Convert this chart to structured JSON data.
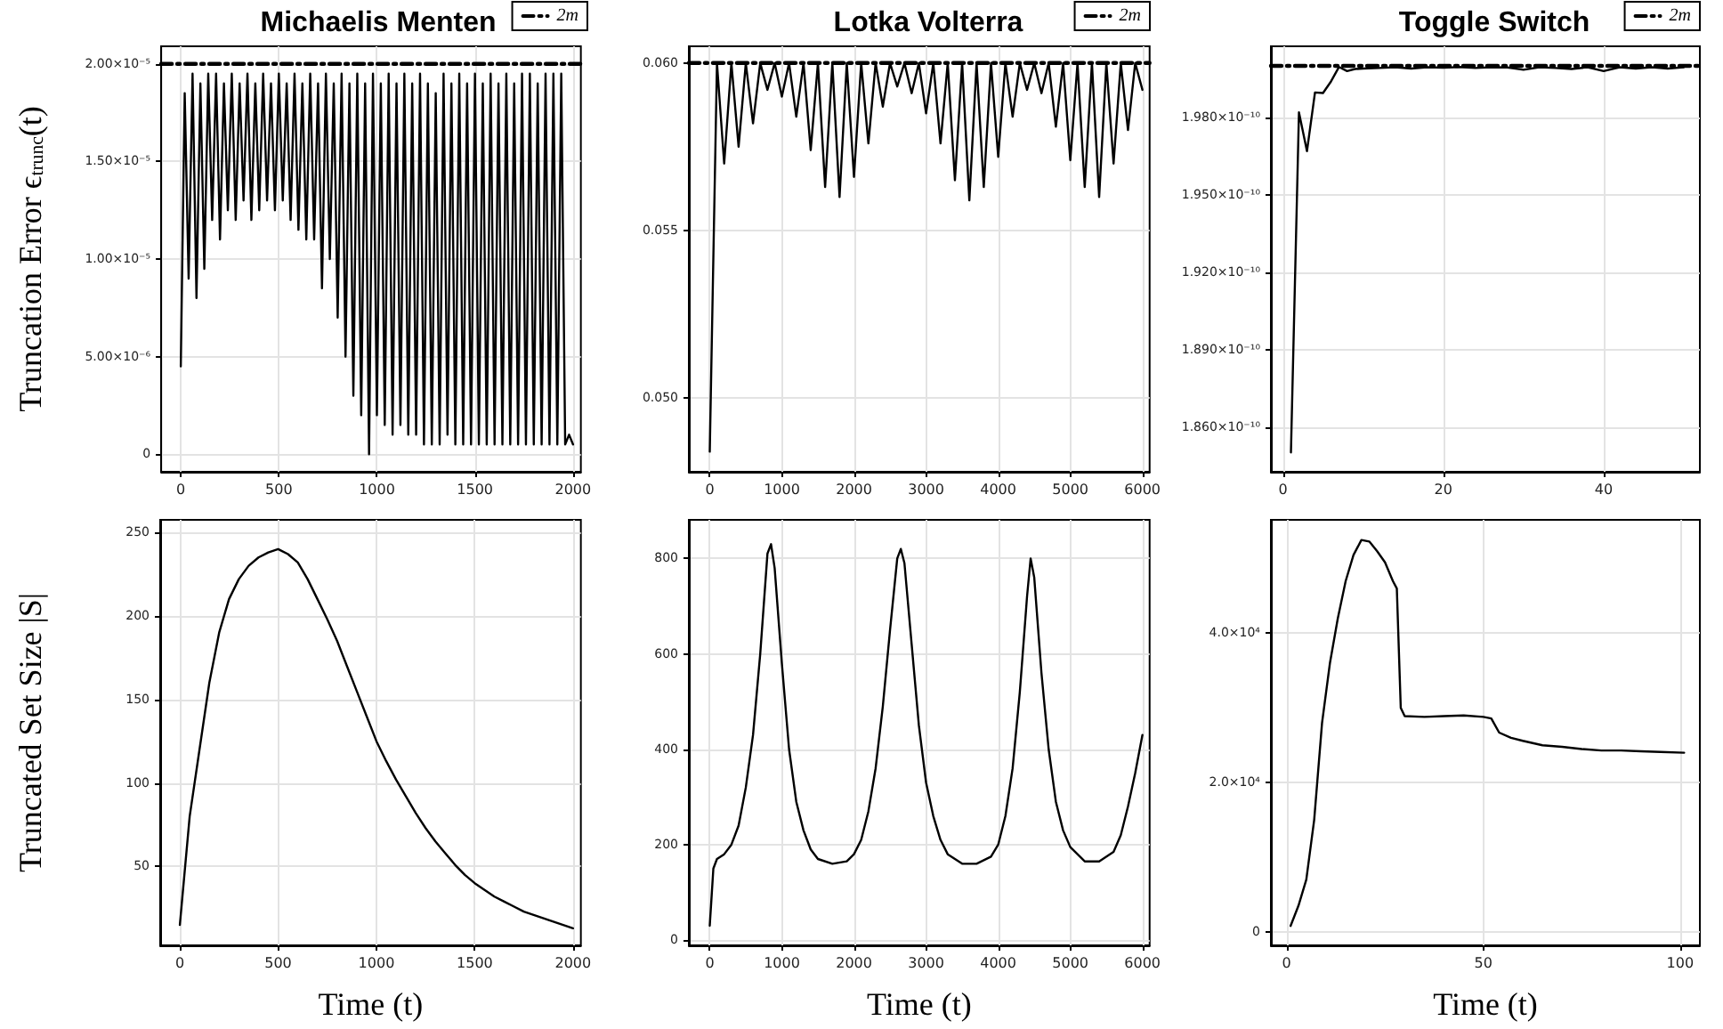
{
  "chart_data": [
    {
      "type": "line",
      "title": "Michaelis Menten",
      "ylabel": "Truncation Error ϵ$_{trunc}$(t)",
      "grid": true,
      "legend": "top right",
      "xlim": [
        -100,
        2040
      ],
      "xticks": [
        0,
        500,
        1000,
        1500,
        2000
      ],
      "ylim": [
        -9e-07,
        2.09e-05
      ],
      "yticks": [
        0,
        {
          "value": 5e-06,
          "label": "5.00×10⁻⁶"
        },
        {
          "value": 1e-05,
          "label": "1.00×10⁻⁵"
        },
        {
          "value": 1.5e-05,
          "label": "1.50×10⁻⁵"
        },
        {
          "value": 2e-05,
          "label": "2.00×10⁻⁵"
        }
      ],
      "series": [
        {
          "color": "#000000",
          "x": [
            0,
            20,
            40,
            60,
            80,
            100,
            120,
            140,
            160,
            180,
            200,
            220,
            240,
            260,
            280,
            300,
            320,
            340,
            360,
            380,
            400,
            420,
            440,
            460,
            480,
            500,
            520,
            540,
            560,
            580,
            600,
            620,
            640,
            660,
            680,
            700,
            720,
            740,
            760,
            780,
            800,
            820,
            840,
            860,
            880,
            900,
            920,
            940,
            960,
            980,
            1000,
            1020,
            1040,
            1060,
            1080,
            1100,
            1120,
            1140,
            1160,
            1180,
            1200,
            1220,
            1240,
            1260,
            1280,
            1300,
            1320,
            1340,
            1360,
            1380,
            1400,
            1420,
            1440,
            1460,
            1480,
            1500,
            1520,
            1540,
            1560,
            1580,
            1600,
            1620,
            1640,
            1660,
            1680,
            1700,
            1720,
            1740,
            1760,
            1780,
            1800,
            1820,
            1840,
            1860,
            1880,
            1900,
            1920,
            1940,
            1960,
            1980,
            2000
          ],
          "values": [
            4.5e-06,
            1.85e-05,
            9e-06,
            1.95e-05,
            8e-06,
            1.9e-05,
            9.5e-06,
            1.95e-05,
            1.2e-05,
            1.95e-05,
            1.1e-05,
            1.9e-05,
            1.25e-05,
            1.95e-05,
            1.2e-05,
            1.9e-05,
            1.3e-05,
            1.95e-05,
            1.2e-05,
            1.9e-05,
            1.25e-05,
            1.95e-05,
            1.3e-05,
            1.9e-05,
            1.25e-05,
            1.95e-05,
            1.3e-05,
            1.9e-05,
            1.2e-05,
            1.95e-05,
            1.15e-05,
            1.9e-05,
            1.1e-05,
            1.95e-05,
            1.1e-05,
            1.9e-05,
            8.5e-06,
            1.95e-05,
            1e-05,
            1.9e-05,
            7e-06,
            1.95e-05,
            5e-06,
            1.9e-05,
            3e-06,
            1.95e-05,
            2e-06,
            1.9e-05,
            0,
            1.95e-05,
            2e-06,
            1.9e-05,
            1.5e-06,
            1.95e-05,
            1e-06,
            1.9e-05,
            1.5e-06,
            1.95e-05,
            1e-06,
            1.9e-05,
            1e-06,
            1.95e-05,
            5e-07,
            1.9e-05,
            5e-07,
            1.85e-05,
            5e-07,
            1.95e-05,
            1e-06,
            1.9e-05,
            5e-07,
            1.95e-05,
            5e-07,
            1.9e-05,
            5e-07,
            1.95e-05,
            5e-07,
            1.9e-05,
            5e-07,
            1.95e-05,
            5e-07,
            1.9e-05,
            5e-07,
            1.95e-05,
            5e-07,
            1.9e-05,
            5e-07,
            1.95e-05,
            5e-07,
            1.95e-05,
            5e-07,
            1.9e-05,
            5e-07,
            1.95e-05,
            5e-07,
            1.95e-05,
            5e-07,
            1.95e-05,
            5e-07,
            1e-06,
            5e-07
          ]
        },
        {
          "name": "2m",
          "color": "#000000",
          "line_style": "dashed",
          "x": [
            -100,
            2040
          ],
          "values": [
            2e-05,
            2e-05
          ]
        }
      ]
    },
    {
      "type": "line",
      "title": "Lotka Volterra",
      "grid": true,
      "legend": "top right",
      "xlim": [
        -290,
        6100
      ],
      "xticks": [
        0,
        1000,
        2000,
        3000,
        4000,
        5000,
        6000
      ],
      "ylim": [
        0.0478,
        0.0605
      ],
      "yticks": [
        {
          "value": 0.05,
          "label": "0.050"
        },
        0.055,
        {
          "value": 0.06,
          "label": "0.060"
        }
      ],
      "series": [
        {
          "color": "#000000",
          "x": [
            0,
            100,
            200,
            300,
            400,
            500,
            600,
            700,
            800,
            900,
            1000,
            1100,
            1200,
            1300,
            1400,
            1500,
            1600,
            1700,
            1800,
            1900,
            2000,
            2100,
            2200,
            2300,
            2400,
            2500,
            2600,
            2700,
            2800,
            2900,
            3000,
            3100,
            3200,
            3300,
            3400,
            3500,
            3600,
            3700,
            3800,
            3900,
            4000,
            4100,
            4200,
            4300,
            4400,
            4500,
            4600,
            4700,
            4800,
            4900,
            5000,
            5100,
            5200,
            5300,
            5400,
            5500,
            5600,
            5700,
            5800,
            5900,
            6000
          ],
          "values": [
            0.0484,
            0.06,
            0.057,
            0.06,
            0.0575,
            0.06,
            0.0582,
            0.06,
            0.0592,
            0.06,
            0.059,
            0.06,
            0.0584,
            0.06,
            0.0574,
            0.06,
            0.0563,
            0.06,
            0.056,
            0.06,
            0.0566,
            0.06,
            0.0576,
            0.06,
            0.0587,
            0.06,
            0.0593,
            0.06,
            0.0591,
            0.06,
            0.0585,
            0.06,
            0.0576,
            0.06,
            0.0565,
            0.06,
            0.0559,
            0.06,
            0.0563,
            0.06,
            0.0572,
            0.06,
            0.0584,
            0.06,
            0.0592,
            0.06,
            0.0591,
            0.06,
            0.0581,
            0.06,
            0.0571,
            0.06,
            0.0563,
            0.06,
            0.056,
            0.06,
            0.057,
            0.06,
            0.058,
            0.06,
            0.0592
          ]
        },
        {
          "name": "2m",
          "color": "#000000",
          "line_style": "dashed",
          "x": [
            -290,
            6100
          ],
          "values": [
            0.06,
            0.06
          ]
        }
      ]
    },
    {
      "type": "line",
      "title": "Toggle Switch",
      "grid": true,
      "legend": "top right",
      "xlim": [
        -1.5,
        52
      ],
      "xticks": [
        0,
        20,
        40
      ],
      "ylim": [
        1.8428e-10,
        2.0076e-10
      ],
      "yticks": [
        {
          "value": 1.86e-10,
          "label": "1.860×10⁻¹⁰"
        },
        {
          "value": 1.89e-10,
          "label": "1.890×10⁻¹⁰"
        },
        {
          "value": 1.92e-10,
          "label": "1.920×10⁻¹⁰"
        },
        {
          "value": 1.95e-10,
          "label": "1.950×10⁻¹⁰"
        },
        {
          "value": 1.98e-10,
          "label": "1.980×10⁻¹⁰"
        }
      ],
      "series": [
        {
          "color": "#000000",
          "x": [
            1,
            2,
            3,
            4,
            5,
            6,
            7,
            8,
            9,
            10,
            12,
            14,
            16,
            18,
            20,
            22,
            24,
            26,
            28,
            30,
            32,
            34,
            36,
            38,
            40,
            42,
            44,
            46,
            48,
            50
          ],
          "values": [
            1.8503e-10,
            1.982e-10,
            1.967e-10,
            1.9897e-10,
            1.9895e-10,
            1.994e-10,
            1.9996e-10,
            1.998e-10,
            1.9988e-10,
            1.999e-10,
            1.9992e-10,
            1.9995e-10,
            1.999e-10,
            1.9995e-10,
            1.9993e-10,
            1.9996e-10,
            1.9992e-10,
            1.9995e-10,
            1.9994e-10,
            1.9985e-10,
            1.9995e-10,
            1.9992e-10,
            1.9988e-10,
            1.9995e-10,
            1.998e-10,
            1.9995e-10,
            1.999e-10,
            1.9995e-10,
            1.999e-10,
            1.9995e-10
          ]
        },
        {
          "name": "2m",
          "color": "#000000",
          "line_style": "dashed",
          "x": [
            -1.5,
            52
          ],
          "values": [
            2e-10,
            2e-10
          ]
        }
      ]
    },
    {
      "type": "line",
      "ylabel": "Truncated Set Size |S|",
      "xlabel": "Time (t)",
      "grid": true,
      "xlim": [
        -100,
        2040
      ],
      "xticks": [
        0,
        500,
        1000,
        1500,
        2000
      ],
      "ylim": [
        2.8,
        257.5
      ],
      "yticks": [
        50,
        100,
        150,
        200,
        250
      ],
      "series": [
        {
          "color": "#000000",
          "x": [
            0,
            50,
            100,
            150,
            200,
            250,
            300,
            350,
            400,
            450,
            500,
            550,
            600,
            650,
            700,
            750,
            800,
            850,
            900,
            950,
            1000,
            1050,
            1100,
            1150,
            1200,
            1250,
            1300,
            1350,
            1400,
            1450,
            1500,
            1550,
            1600,
            1650,
            1700,
            1750,
            1800,
            1850,
            1900,
            1950,
            2000
          ],
          "values": [
            15,
            80,
            120,
            160,
            190,
            210,
            222,
            230,
            235,
            238,
            240,
            237,
            232,
            222,
            210,
            198,
            185,
            170,
            155,
            140,
            125,
            113,
            102,
            92,
            82,
            73,
            65,
            58,
            51,
            45,
            40,
            36,
            32,
            29,
            26,
            23,
            21,
            19,
            17,
            15,
            13
          ]
        }
      ]
    },
    {
      "type": "line",
      "xlabel": "Time (t)",
      "grid": true,
      "xlim": [
        -290,
        6100
      ],
      "xticks": [
        0,
        1000,
        2000,
        3000,
        4000,
        5000,
        6000
      ],
      "ylim": [
        -11,
        881
      ],
      "yticks": [
        0,
        200,
        400,
        600,
        800
      ],
      "series": [
        {
          "color": "#000000",
          "x": [
            0,
            50,
            100,
            200,
            300,
            400,
            500,
            600,
            700,
            800,
            850,
            900,
            1000,
            1100,
            1200,
            1300,
            1400,
            1500,
            1700,
            1900,
            2000,
            2100,
            2200,
            2300,
            2400,
            2500,
            2600,
            2650,
            2700,
            2800,
            2900,
            3000,
            3100,
            3200,
            3300,
            3500,
            3700,
            3900,
            4000,
            4100,
            4200,
            4300,
            4400,
            4450,
            4500,
            4600,
            4700,
            4800,
            4900,
            5000,
            5200,
            5400,
            5600,
            5700,
            5800,
            5900,
            6000
          ],
          "values": [
            30,
            150,
            170,
            180,
            200,
            240,
            320,
            430,
            600,
            810,
            830,
            780,
            580,
            400,
            290,
            230,
            190,
            170,
            160,
            165,
            180,
            210,
            270,
            360,
            490,
            650,
            800,
            820,
            790,
            620,
            450,
            330,
            260,
            210,
            180,
            160,
            160,
            175,
            200,
            260,
            360,
            520,
            720,
            800,
            760,
            560,
            400,
            290,
            230,
            195,
            165,
            165,
            185,
            220,
            280,
            350,
            430
          ]
        }
      ]
    },
    {
      "type": "line",
      "xlabel": "Time (t)",
      "grid": true,
      "xlim": [
        -4,
        105
      ],
      "xticks": [
        0,
        50,
        100
      ],
      "ylim": [
        -1800,
        55200
      ],
      "yticks": [
        0,
        {
          "value": 20000,
          "label": "2.0×10⁴"
        },
        {
          "value": 40000,
          "label": "4.0×10⁴"
        }
      ],
      "series": [
        {
          "color": "#000000",
          "x": [
            1,
            3,
            5,
            7,
            9,
            11,
            13,
            15,
            17,
            19,
            21,
            23,
            25,
            27,
            28,
            29,
            30,
            35,
            40,
            45,
            50,
            52,
            54,
            57,
            60,
            65,
            70,
            75,
            80,
            85,
            90,
            95,
            101
          ],
          "values": [
            800,
            3500,
            7000,
            15000,
            28000,
            36000,
            42000,
            47000,
            50500,
            52500,
            52300,
            51000,
            49500,
            47000,
            46000,
            30000,
            28900,
            28800,
            28900,
            29000,
            28800,
            28600,
            26700,
            26000,
            25600,
            25000,
            24800,
            24500,
            24300,
            24300,
            24200,
            24100,
            24000
          ]
        }
      ]
    }
  ]
}
